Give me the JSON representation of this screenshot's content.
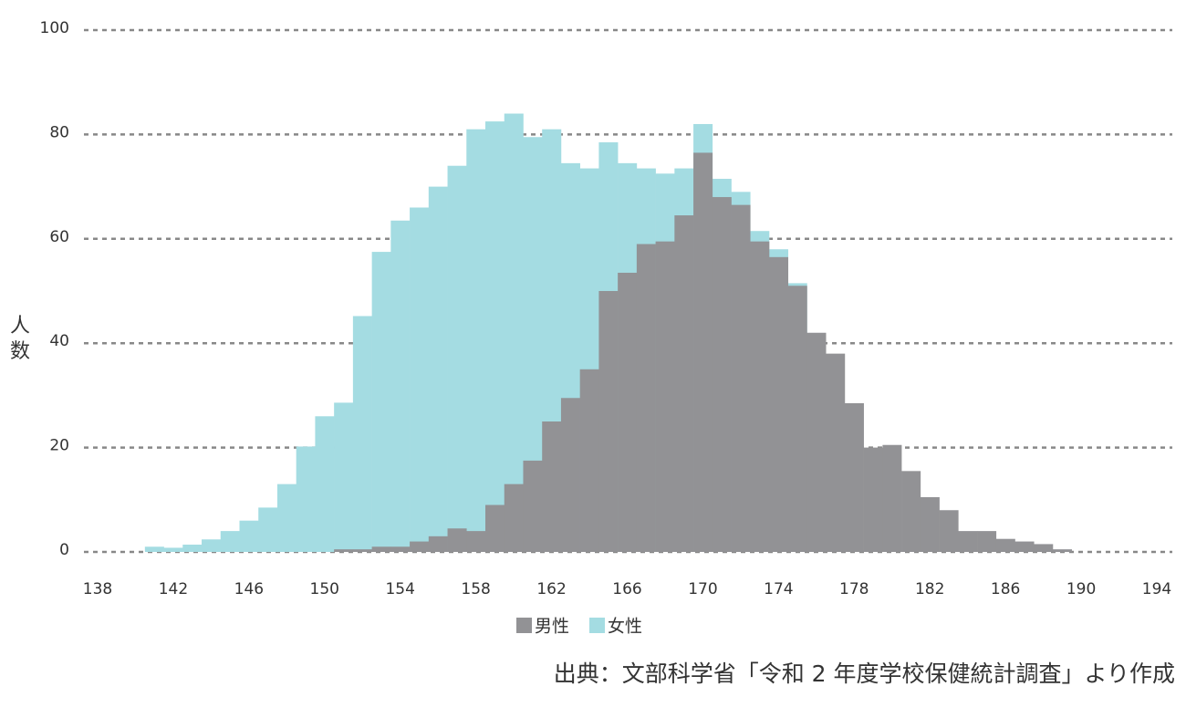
{
  "chart_data": {
    "type": "histogram",
    "y_label": "人数",
    "source": "出典：文部科学省「令和 2 年度学校保健統計調査」より作成",
    "xlim": [
      138,
      194
    ],
    "xticks": [
      138,
      142,
      146,
      150,
      154,
      158,
      162,
      166,
      170,
      174,
      178,
      182,
      186,
      190,
      194
    ],
    "ylim": [
      0,
      100
    ],
    "yticks": [
      0,
      20,
      40,
      60,
      80,
      100
    ],
    "grid": true,
    "series": [
      {
        "name": "女性",
        "color": "#a4dce2",
        "bins": [
          140.5,
          141.5,
          142.5,
          143.5,
          144.5,
          145.5,
          146.5,
          147.5,
          148.5,
          149.5,
          150.5,
          151.5,
          152.5,
          153.5,
          154.5,
          155.5,
          156.5,
          157.5,
          158.5,
          159.5,
          160.5,
          161.5,
          162.5,
          163.5,
          164.5,
          165.5,
          166.5,
          167.5,
          168.5,
          169.5,
          170.5,
          171.5,
          172.5,
          173.5,
          174.5,
          175.5
        ],
        "values": [
          1,
          0.8,
          1.4,
          2.4,
          4,
          6,
          8.5,
          13,
          20.2,
          26,
          28.6,
          45.2,
          57.5,
          63.5,
          66,
          70,
          74,
          81,
          82.5,
          84,
          79.5,
          81,
          74.5,
          73.5,
          78.5,
          74.5,
          73.5,
          72.5,
          73.5,
          82,
          71.5,
          69,
          61.5,
          58,
          51.5
        ]
      },
      {
        "name": "男性",
        "color": "#929295",
        "bins": [
          150.5,
          151.5,
          152.5,
          153.5,
          154.5,
          155.5,
          156.5,
          157.5,
          158.5,
          159.5,
          160.5,
          161.5,
          162.5,
          163.5,
          164.5,
          165.5,
          166.5,
          167.5,
          168.5,
          169.5,
          170.5,
          171.5,
          172.5,
          173.5,
          174.5,
          175.5,
          176.5,
          177.5,
          178.5,
          179.5,
          180.5,
          181.5,
          182.5,
          183.5,
          184.5,
          185.5,
          186.5,
          187.5,
          188.5,
          189.5
        ],
        "values": [
          0.5,
          0.5,
          1,
          1,
          2,
          3,
          4.5,
          4,
          9,
          13,
          17.5,
          25,
          29.5,
          35,
          50,
          53.5,
          59,
          59.5,
          64.5,
          76.5,
          68,
          66.5,
          59.5,
          56.5,
          51,
          42,
          38,
          28.5,
          20,
          20.5,
          15.5,
          10.5,
          8,
          4,
          4,
          2.5,
          2,
          1.5,
          0.5
        ]
      }
    ],
    "legend_order": [
      1,
      0
    ]
  }
}
